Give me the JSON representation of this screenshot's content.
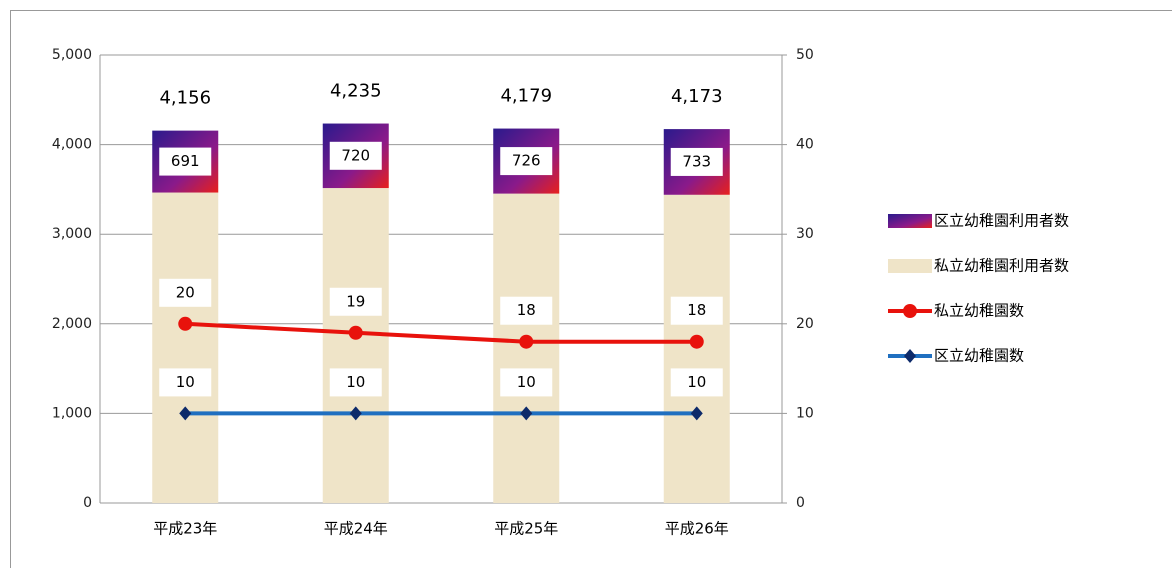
{
  "chart_data": {
    "type": "bar",
    "categories": [
      "平成23年",
      "平成24年",
      "平成25年",
      "平成26年"
    ],
    "series": [
      {
        "name": "区立幼稚園利用者数",
        "type": "bar",
        "color": "#6e1a8e",
        "values": [
          691,
          720,
          726,
          733
        ]
      },
      {
        "name": "私立幼稚園利用者数",
        "type": "bar",
        "color": "#efe4c8",
        "values": [
          3465,
          3515,
          3453,
          3440
        ],
        "value_labels": [
          "3,465",
          "3,515",
          "3,453",
          "3,440"
        ]
      },
      {
        "name": "私立幼稚園数",
        "type": "line",
        "axis": "y2",
        "color": "#e8120c",
        "values": [
          20,
          19,
          18,
          18
        ]
      },
      {
        "name": "区立幼稚園数",
        "type": "line",
        "axis": "y2",
        "color": "#1f6fc0",
        "marker_color": "#0d2a6a",
        "values": [
          10,
          10,
          10,
          10
        ]
      }
    ],
    "total_labels": [
      "4,156",
      "4,235",
      "4,179",
      "4,173"
    ],
    "ylim": [
      0,
      5000
    ],
    "yticks": [
      0,
      {
        "value": 1000,
        "label": "1,000"
      },
      {
        "value": 2000,
        "label": "2,000"
      },
      {
        "value": 3000,
        "label": "3,000"
      },
      {
        "value": 4000,
        "label": "4,000"
      },
      {
        "value": 5000,
        "label": "5,000"
      }
    ],
    "y2lim": [
      0,
      50
    ],
    "y2ticks": [
      0,
      10,
      20,
      30,
      40,
      50
    ],
    "grid": true,
    "legend": "right"
  }
}
